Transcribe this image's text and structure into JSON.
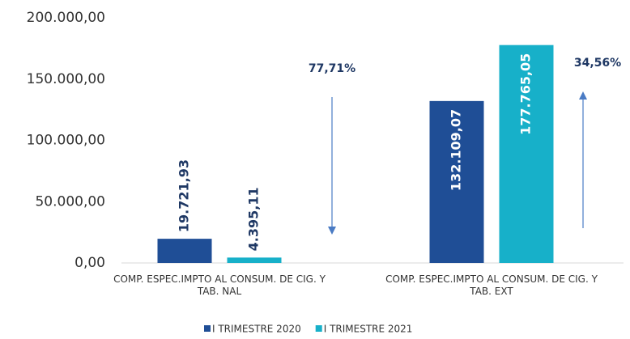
{
  "chart_data": {
    "type": "bar",
    "categories": [
      "COMP. ESPEC.IMPTO AL CONSUM. DE CIG. Y TAB. NAL",
      "COMP. ESPEC.IMPTO AL CONSUM. DE CIG. Y TAB. EXT"
    ],
    "series": [
      {
        "name": "I TRIMESTRE 2020",
        "color": "#1f4e96",
        "values": [
          19721.93,
          132109.07
        ],
        "value_labels": [
          "19.721,93",
          "132.109,07"
        ]
      },
      {
        "name": "I TRIMESTRE 2021",
        "color": "#17b0c9",
        "values": [
          4395.11,
          177765.05
        ],
        "value_labels": [
          "4.395,11",
          "177.765,05"
        ]
      }
    ],
    "annotations": [
      {
        "text": "77,71%",
        "direction": "down"
      },
      {
        "text": "34,56%",
        "direction": "up"
      }
    ],
    "ylim": [
      0,
      200000
    ],
    "yticks": [
      {
        "value": 0,
        "label": "0,00"
      },
      {
        "value": 50000,
        "label": "50.000,00"
      },
      {
        "value": 100000,
        "label": "100.000,00"
      },
      {
        "value": 150000,
        "label": "150.000,00"
      },
      {
        "value": 200000,
        "label": "200.000,00"
      }
    ],
    "legend": "bottom"
  }
}
